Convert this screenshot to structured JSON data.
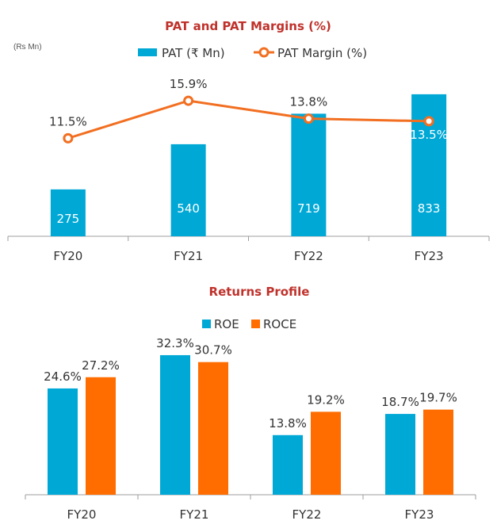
{
  "chart_data": [
    {
      "type": "bar",
      "title": "PAT and PAT Margins (%)",
      "unit_note": "(Rs Mn)",
      "categories": [
        "FY20",
        "FY21",
        "FY22",
        "FY23"
      ],
      "series": [
        {
          "name": "PAT (₹ Mn)",
          "type": "bar",
          "values": [
            275,
            540,
            719,
            833
          ],
          "color": "#00a8d6"
        },
        {
          "name": "PAT Margin (%)",
          "type": "line",
          "values": [
            11.5,
            15.9,
            13.8,
            13.5
          ],
          "labels": [
            "11.5%",
            "15.9%",
            "13.8%",
            "13.5%"
          ],
          "color": "#f26f21"
        }
      ],
      "ylim": [
        0,
        1000
      ],
      "y2lim": [
        0,
        20
      ],
      "grid": false,
      "legend": "top"
    },
    {
      "type": "bar",
      "title": "Returns Profile",
      "categories": [
        "FY20",
        "FY21",
        "FY22",
        "FY23"
      ],
      "series": [
        {
          "name": "ROE",
          "values": [
            24.6,
            32.3,
            13.8,
            18.7
          ],
          "labels": [
            "24.6%",
            "32.3%",
            "13.8%",
            "18.7%"
          ],
          "color": "#00a8d6"
        },
        {
          "name": "ROCE",
          "values": [
            27.2,
            30.7,
            19.2,
            19.7
          ],
          "labels": [
            "27.2%",
            "30.7%",
            "19.2%",
            "19.7%"
          ],
          "color": "#ff6d00"
        }
      ],
      "ylim": [
        0,
        40
      ],
      "grid": false,
      "legend": "top"
    }
  ],
  "colors": {
    "title": "#c0312b",
    "axis": "#9e9e9e"
  }
}
